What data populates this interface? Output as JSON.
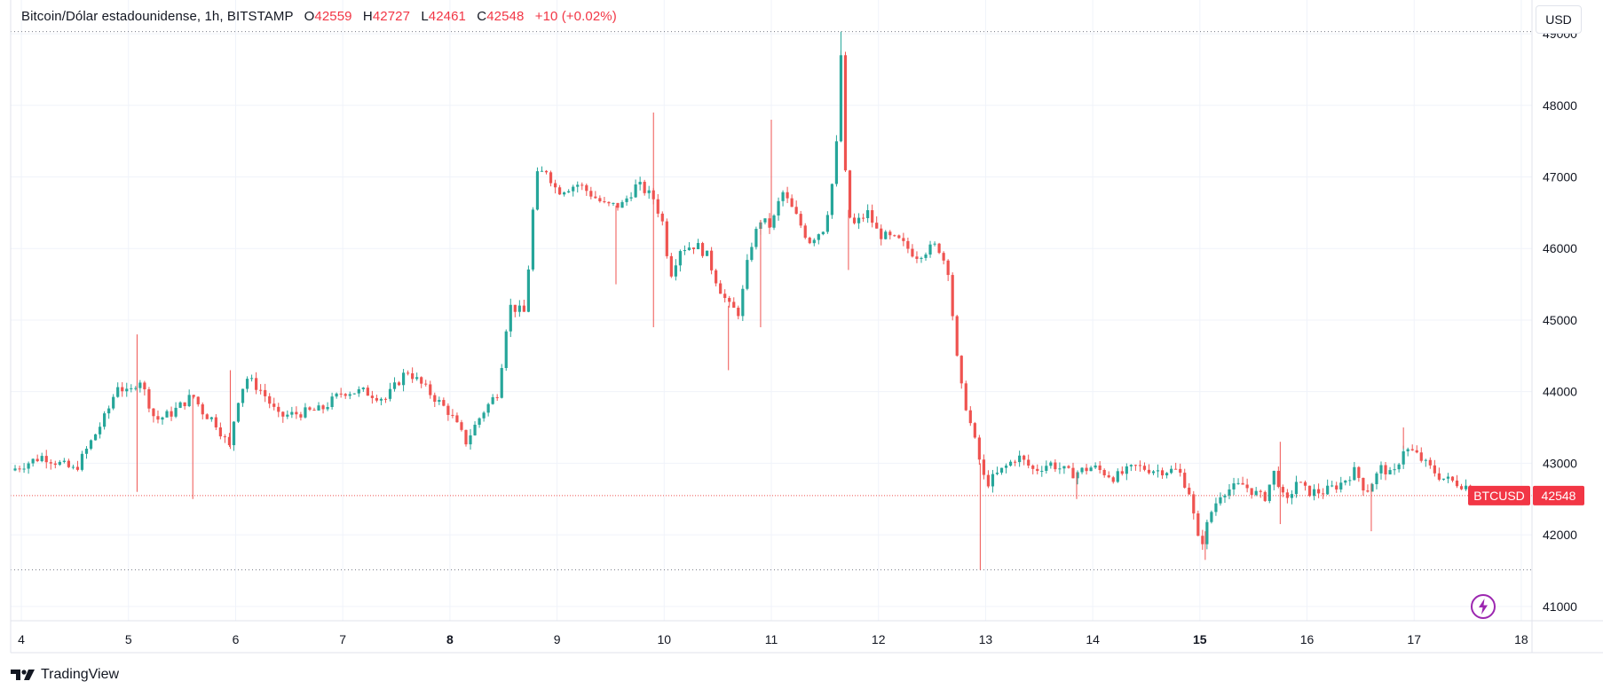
{
  "header": {
    "symbol": "Bitcoin/Dólar estadounidense, 1h, BITSTAMP",
    "open_label": "O",
    "open_value": "42559",
    "high_label": "H",
    "high_value": "42727",
    "low_label": "L",
    "low_value": "42461",
    "close_label": "C",
    "close_value": "42548",
    "change": "+10 (+0.02%)"
  },
  "currency_button": "USD",
  "brand": "TradingView",
  "colors": {
    "up": "#26a69a",
    "down": "#ef5350",
    "grid": "#f0f3fa",
    "axis_text": "#131722",
    "price_tag": "#f23645"
  },
  "icons": {
    "brand": "tradingview-logo-icon",
    "bolt": "lightning-bolt-icon"
  },
  "chart_data": {
    "type": "candlestick",
    "interval": "1h",
    "ylim": [
      40800,
      49100
    ],
    "y_ticks": [
      41000,
      42000,
      43000,
      44000,
      45000,
      46000,
      47000,
      48000,
      49000
    ],
    "x_ticks": [
      {
        "label": "4",
        "day": 4,
        "bold": false
      },
      {
        "label": "5",
        "day": 5,
        "bold": false
      },
      {
        "label": "6",
        "day": 6,
        "bold": false
      },
      {
        "label": "7",
        "day": 7,
        "bold": false
      },
      {
        "label": "8",
        "day": 8,
        "bold": true
      },
      {
        "label": "9",
        "day": 9,
        "bold": false
      },
      {
        "label": "10",
        "day": 10,
        "bold": false
      },
      {
        "label": "11",
        "day": 11,
        "bold": false
      },
      {
        "label": "12",
        "day": 12,
        "bold": false
      },
      {
        "label": "13",
        "day": 13,
        "bold": false
      },
      {
        "label": "14",
        "day": 14,
        "bold": false
      },
      {
        "label": "15",
        "day": 15,
        "bold": true
      },
      {
        "label": "16",
        "day": 16,
        "bold": false
      },
      {
        "label": "17",
        "day": 17,
        "bold": false
      },
      {
        "label": "18",
        "day": 18,
        "bold": false
      }
    ],
    "x_range_days": [
      3.9,
      18.1
    ],
    "high_line": 49030,
    "low_line": 41510,
    "last_price": 42548,
    "last_price_label": "42548",
    "symbol_tag": "BTCUSD",
    "close_path": [
      [
        3.9,
        42900
      ],
      [
        4.2,
        43100
      ],
      [
        4.5,
        42900
      ],
      [
        4.8,
        43700
      ],
      [
        4.9,
        44100
      ],
      [
        5.0,
        43950
      ],
      [
        5.1,
        44200
      ],
      [
        5.25,
        43600
      ],
      [
        5.4,
        43700
      ],
      [
        5.6,
        43950
      ],
      [
        5.7,
        43700
      ],
      [
        5.8,
        43600
      ],
      [
        5.95,
        43200
      ],
      [
        6.0,
        43800
      ],
      [
        6.1,
        44200
      ],
      [
        6.25,
        44000
      ],
      [
        6.4,
        43650
      ],
      [
        6.6,
        43700
      ],
      [
        6.8,
        43750
      ],
      [
        7.0,
        44000
      ],
      [
        7.2,
        44000
      ],
      [
        7.4,
        43900
      ],
      [
        7.6,
        44300
      ],
      [
        7.8,
        44000
      ],
      [
        8.0,
        43700
      ],
      [
        8.15,
        43300
      ],
      [
        8.3,
        43700
      ],
      [
        8.45,
        44000
      ],
      [
        8.55,
        45200
      ],
      [
        8.7,
        45100
      ],
      [
        8.8,
        47000
      ],
      [
        8.9,
        47100
      ],
      [
        9.0,
        46800
      ],
      [
        9.2,
        46900
      ],
      [
        9.45,
        46600
      ],
      [
        9.6,
        46600
      ],
      [
        9.75,
        46900
      ],
      [
        9.9,
        46700
      ],
      [
        10.0,
        46300
      ],
      [
        10.05,
        45600
      ],
      [
        10.15,
        46000
      ],
      [
        10.3,
        46050
      ],
      [
        10.4,
        45900
      ],
      [
        10.5,
        45500
      ],
      [
        10.6,
        45200
      ],
      [
        10.7,
        45100
      ],
      [
        10.8,
        46000
      ],
      [
        10.9,
        46400
      ],
      [
        11.0,
        46300
      ],
      [
        11.1,
        46800
      ],
      [
        11.25,
        46400
      ],
      [
        11.35,
        46100
      ],
      [
        11.5,
        46300
      ],
      [
        11.6,
        47200
      ],
      [
        11.65,
        48700
      ],
      [
        11.7,
        46700
      ],
      [
        11.75,
        46300
      ],
      [
        11.9,
        46500
      ],
      [
        12.0,
        46200
      ],
      [
        12.2,
        46100
      ],
      [
        12.35,
        45900
      ],
      [
        12.55,
        46050
      ],
      [
        12.65,
        45700
      ],
      [
        12.75,
        44200
      ],
      [
        12.85,
        43600
      ],
      [
        12.95,
        43000
      ],
      [
        13.0,
        42700
      ],
      [
        13.15,
        42900
      ],
      [
        13.3,
        43100
      ],
      [
        13.45,
        42900
      ],
      [
        13.6,
        43000
      ],
      [
        13.8,
        42850
      ],
      [
        14.0,
        42950
      ],
      [
        14.2,
        42800
      ],
      [
        14.4,
        42950
      ],
      [
        14.6,
        42900
      ],
      [
        14.8,
        42900
      ],
      [
        14.9,
        42600
      ],
      [
        15.0,
        41800
      ],
      [
        15.1,
        42300
      ],
      [
        15.2,
        42600
      ],
      [
        15.4,
        42700
      ],
      [
        15.6,
        42500
      ],
      [
        15.7,
        42900
      ],
      [
        15.8,
        42400
      ],
      [
        15.9,
        42750
      ],
      [
        16.0,
        42600
      ],
      [
        16.15,
        42600
      ],
      [
        16.3,
        42700
      ],
      [
        16.45,
        42900
      ],
      [
        16.55,
        42600
      ],
      [
        16.7,
        42950
      ],
      [
        16.8,
        42800
      ],
      [
        16.9,
        43200
      ],
      [
        17.0,
        43150
      ],
      [
        17.1,
        43000
      ],
      [
        17.25,
        42800
      ],
      [
        17.45,
        42700
      ],
      [
        17.55,
        42650
      ],
      [
        17.6,
        42548
      ]
    ],
    "spikes": [
      {
        "day": 5.08,
        "low": 42600,
        "high": 44800
      },
      {
        "day": 5.6,
        "low": 42500
      },
      {
        "day": 5.95,
        "high": 44300
      },
      {
        "day": 9.55,
        "low": 45500
      },
      {
        "day": 9.9,
        "high": 47900,
        "low": 44900
      },
      {
        "day": 10.6,
        "low": 44300
      },
      {
        "day": 10.9,
        "low": 44900
      },
      {
        "day": 11.0,
        "high": 47800
      },
      {
        "day": 11.65,
        "high": 49030
      },
      {
        "day": 11.72,
        "low": 45700
      },
      {
        "day": 12.95,
        "low": 41510
      },
      {
        "day": 13.85,
        "low": 42500
      },
      {
        "day": 15.05,
        "low": 41650
      },
      {
        "day": 15.75,
        "high": 43300
      },
      {
        "day": 15.75,
        "low": 42150
      },
      {
        "day": 16.6,
        "low": 42050
      },
      {
        "day": 16.9,
        "high": 43500
      }
    ]
  }
}
